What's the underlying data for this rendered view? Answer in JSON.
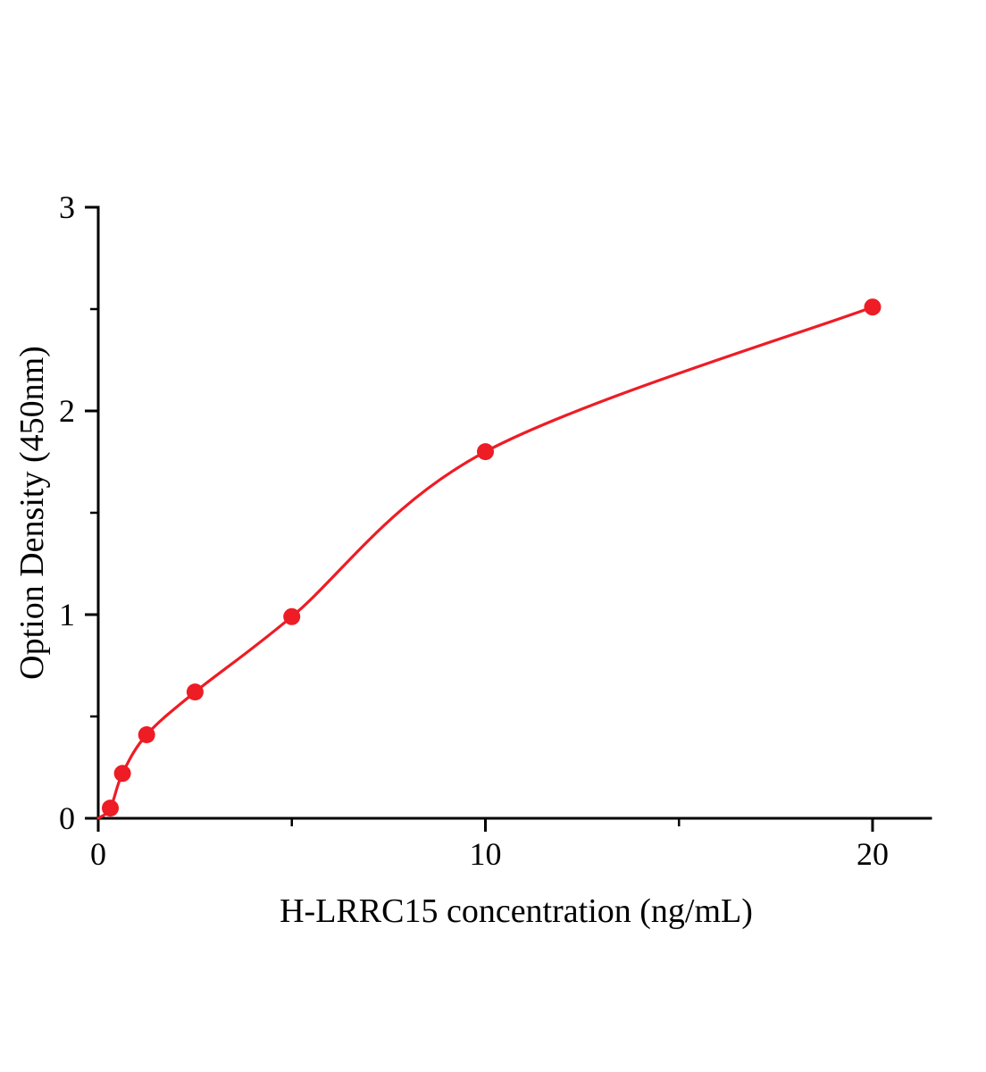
{
  "figure": {
    "background_color": "#ffffff"
  },
  "chart_data": {
    "type": "scatter",
    "title": "",
    "xlabel": "H-LRRC15 concentration (ng/mL)",
    "ylabel": "Option Density (450nm)",
    "x": [
      0.3125,
      0.625,
      1.25,
      2.5,
      5,
      10,
      20
    ],
    "y": [
      0.05,
      0.22,
      0.41,
      0.62,
      0.99,
      1.8,
      2.51
    ],
    "curve_start": {
      "x": 0,
      "y": 0
    },
    "xlim": [
      0,
      21.5
    ],
    "ylim": [
      0,
      3
    ],
    "x_major_ticks": [
      0,
      10,
      20
    ],
    "x_minor_ticks": [
      5,
      15
    ],
    "y_major_ticks": [
      0,
      1,
      2,
      3
    ],
    "y_minor_ticks": [
      0.5,
      1.5,
      2.5
    ],
    "x_tick_labels": [
      "0",
      "10",
      "20"
    ],
    "y_tick_labels": [
      "0",
      "1",
      "2",
      "3"
    ],
    "marker_color": "#ee1c25",
    "line_color": "#ee1c25",
    "axis_color": "#000000",
    "grid": false,
    "legend": false
  }
}
